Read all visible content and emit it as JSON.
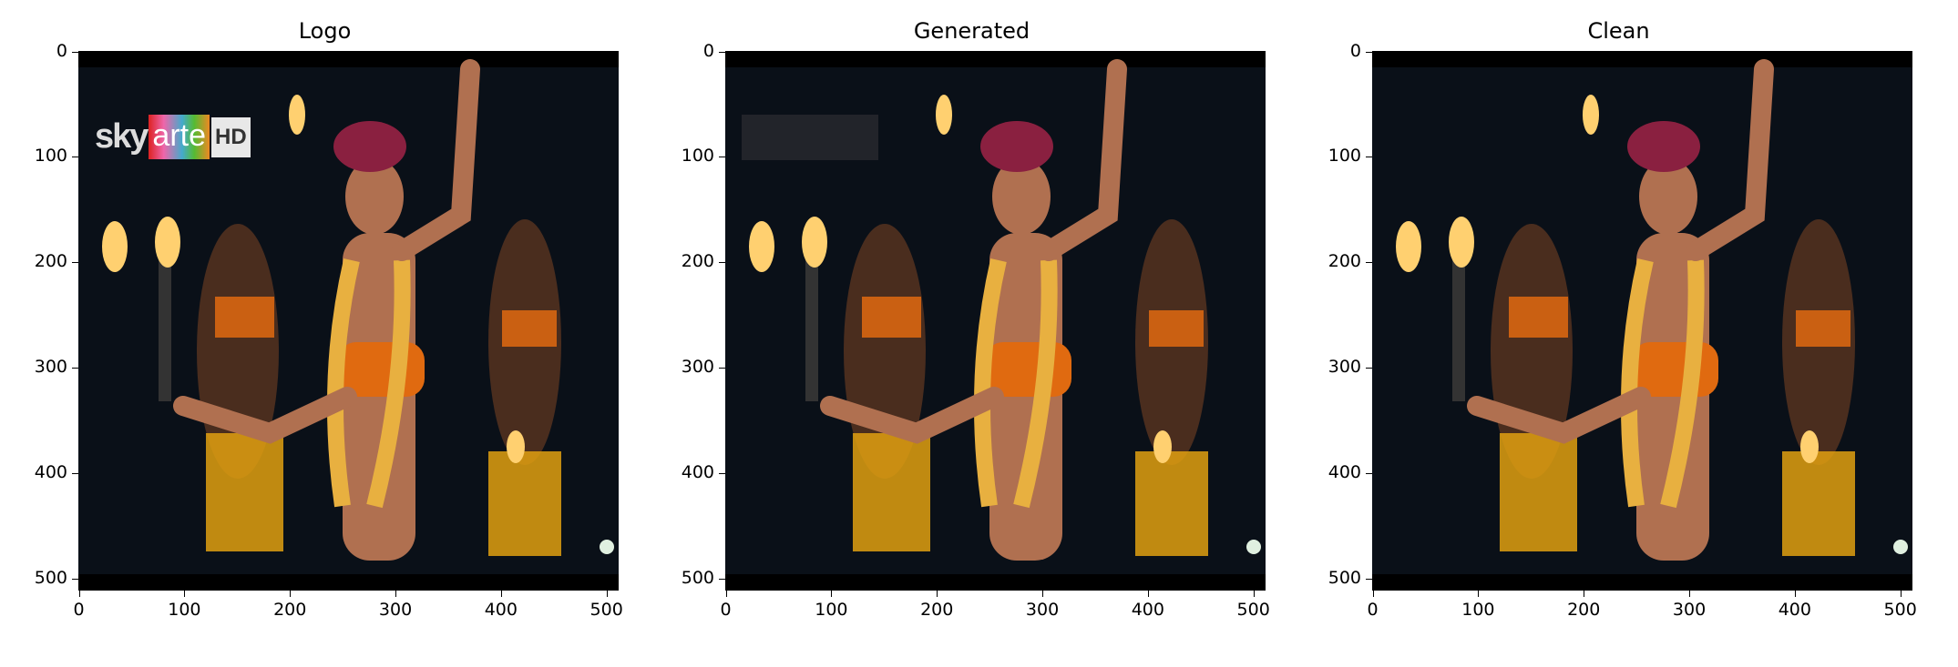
{
  "panels": [
    {
      "title": "Logo",
      "has_logo": true,
      "logo": {
        "part1": "sky",
        "part2": "arte",
        "part3": "HD"
      }
    },
    {
      "title": "Generated",
      "has_logo": false,
      "ghost": true
    },
    {
      "title": "Clean",
      "has_logo": false
    }
  ],
  "axes": {
    "xticks": [
      "0",
      "100",
      "200",
      "300",
      "400",
      "500"
    ],
    "yticks": [
      "0",
      "100",
      "200",
      "300",
      "400",
      "500"
    ],
    "xrange": [
      0,
      512
    ],
    "yrange": [
      0,
      512
    ]
  },
  "colors": {
    "background": "#ffffff",
    "sky": "#0a1018",
    "skin": "#b07050",
    "top": "#e06a10",
    "lei": "#e8b040",
    "fire": "#ffd070",
    "skirt": "#e0a010"
  }
}
